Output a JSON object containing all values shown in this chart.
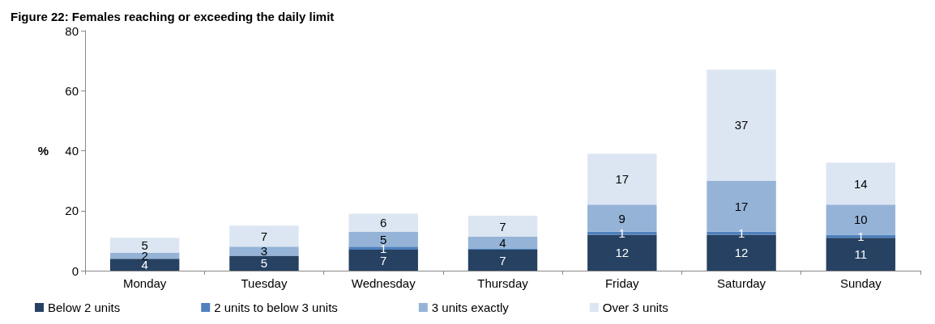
{
  "chart_data": {
    "type": "bar",
    "title": "Figure 22: Females reaching or exceeding the daily limit",
    "ylabel": "%",
    "categories": [
      "Monday",
      "Tuesday",
      "Wednesday",
      "Thursday",
      "Friday",
      "Saturday",
      "Sunday"
    ],
    "stacked": true,
    "ylim": [
      0,
      80
    ],
    "yticks": [
      0,
      20,
      40,
      60,
      80
    ],
    "grid": false,
    "legend": "bottom",
    "series": [
      {
        "name": "Below 2 units",
        "color": "#264162",
        "values": [
          4,
          5,
          7,
          7,
          12,
          12,
          11
        ],
        "value_labels": [
          "4",
          "5",
          "7",
          "7",
          "12",
          "12",
          "11"
        ]
      },
      {
        "name": "2 units to below 3 units",
        "color": "#4f81bd",
        "values": [
          0,
          0,
          1,
          0.3,
          1,
          1,
          1
        ],
        "value_labels": [
          null,
          null,
          "1",
          null,
          "1",
          "1",
          "1"
        ]
      },
      {
        "name": "3 units exactly",
        "color": "#95b3d7",
        "values": [
          2,
          3,
          5,
          4,
          9,
          17,
          10
        ],
        "value_labels": [
          "2",
          "3",
          "5",
          "4",
          "9",
          "17",
          "10"
        ]
      },
      {
        "name": "Over 3 units",
        "color": "#dce6f2",
        "values": [
          5,
          7,
          6,
          7,
          17,
          37,
          14
        ],
        "value_labels": [
          "5",
          "7",
          "6",
          "7",
          "17",
          "37",
          "14"
        ]
      }
    ]
  }
}
